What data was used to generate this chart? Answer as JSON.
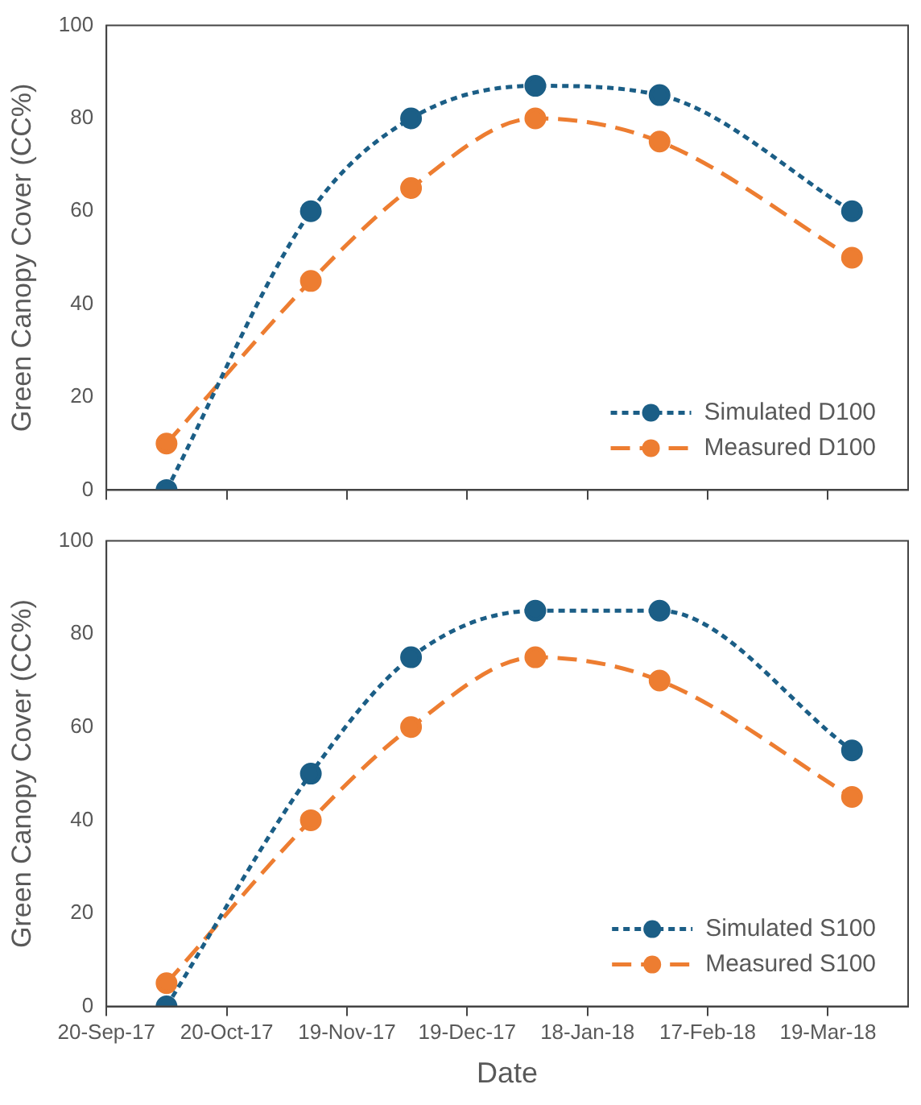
{
  "chart_data": [
    {
      "type": "line",
      "ylabel": "Green Canopy Cover (CC%)",
      "xlim": [
        "2017-09-20",
        "2018-04-08"
      ],
      "ylim": [
        0,
        100
      ],
      "yticks": [
        0,
        20,
        40,
        60,
        80,
        100
      ],
      "xticks": [
        {
          "value": "2017-09-20",
          "label": null
        },
        {
          "value": "2017-10-20",
          "label": null
        },
        {
          "value": "2017-11-19",
          "label": null
        },
        {
          "value": "2017-12-19",
          "label": null
        },
        {
          "value": "2018-01-18",
          "label": null
        },
        {
          "value": "2018-02-17",
          "label": null
        },
        {
          "value": "2018-03-19",
          "label": null
        }
      ],
      "x": [
        "2017-10-05",
        "2017-11-10",
        "2017-12-05",
        "2018-01-05",
        "2018-02-05",
        "2018-03-25"
      ],
      "series": [
        {
          "name": "Simulated D100",
          "color": "#1b5e86",
          "line_style": "dotted",
          "values": [
            0,
            60,
            80,
            87,
            85,
            60
          ]
        },
        {
          "name": "Measured D100",
          "color": "#ed7d31",
          "line_style": "dashed",
          "values": [
            10,
            45,
            65,
            80,
            75,
            50
          ]
        }
      ],
      "marker": "circle",
      "grid": false,
      "legend": "bottom right",
      "tick_labels": "y"
    },
    {
      "type": "line",
      "xlabel": "Date",
      "ylabel": "Green Canopy Cover (CC%)",
      "xlim": [
        "2017-09-20",
        "2018-04-08"
      ],
      "ylim": [
        0,
        100
      ],
      "yticks": [
        0,
        20,
        40,
        60,
        80,
        100
      ],
      "xticks": [
        {
          "value": "2017-09-20",
          "label": "20-Sep-17"
        },
        {
          "value": "2017-10-20",
          "label": "20-Oct-17"
        },
        {
          "value": "2017-11-19",
          "label": "19-Nov-17"
        },
        {
          "value": "2017-12-19",
          "label": "19-Dec-17"
        },
        {
          "value": "2018-01-18",
          "label": "18-Jan-18"
        },
        {
          "value": "2018-02-17",
          "label": "17-Feb-18"
        },
        {
          "value": "2018-03-19",
          "label": "19-Mar-18"
        }
      ],
      "x": [
        "2017-10-05",
        "2017-11-10",
        "2017-12-05",
        "2018-01-05",
        "2018-02-05",
        "2018-03-25"
      ],
      "series": [
        {
          "name": "Simulated S100",
          "color": "#1b5e86",
          "line_style": "dotted",
          "values": [
            0,
            50,
            75,
            85,
            85,
            55
          ]
        },
        {
          "name": "Measured S100",
          "color": "#ed7d31",
          "line_style": "dashed",
          "values": [
            5,
            40,
            60,
            75,
            70,
            45
          ]
        }
      ],
      "marker": "circle",
      "grid": false,
      "legend": "bottom right"
    }
  ]
}
